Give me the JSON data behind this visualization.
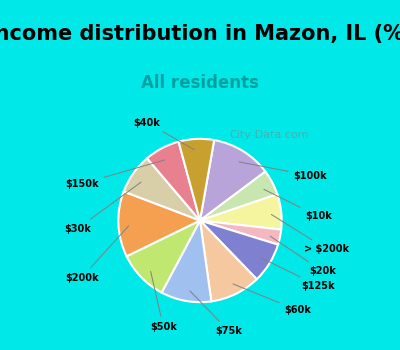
{
  "title": "Income distribution in Mazon, IL (%)",
  "subtitle": "All residents",
  "labels": [
    "$100k",
    "$10k",
    "> $200k",
    "$20k",
    "$125k",
    "$60k",
    "$75k",
    "$50k",
    "$200k",
    "$30k",
    "$150k",
    "$40k"
  ],
  "sizes": [
    12,
    5,
    7,
    3,
    8,
    10,
    10,
    10,
    13,
    8,
    7,
    7
  ],
  "colors": [
    "#b8a4d8",
    "#c8e6b0",
    "#f5f5a0",
    "#f5b8c0",
    "#8080d0",
    "#f5c8a0",
    "#a0c0f0",
    "#c0e870",
    "#f5a050",
    "#d8cfa8",
    "#e88090",
    "#c8a030"
  ],
  "label_colors": [
    "#1a1a1a",
    "#1a1a1a",
    "#1a1a1a",
    "#1a1a1a",
    "#1a1a1a",
    "#1a1a1a",
    "#1a1a1a",
    "#1a1a1a",
    "#1a1a1a",
    "#1a1a1a",
    "#1a1a1a",
    "#1a1a1a"
  ],
  "background_top": "#00e8e8",
  "background_chart": "#e8f5ef",
  "title_fontsize": 15,
  "subtitle_fontsize": 12,
  "subtitle_color": "#00a0a0",
  "watermark": "City-Data.com"
}
